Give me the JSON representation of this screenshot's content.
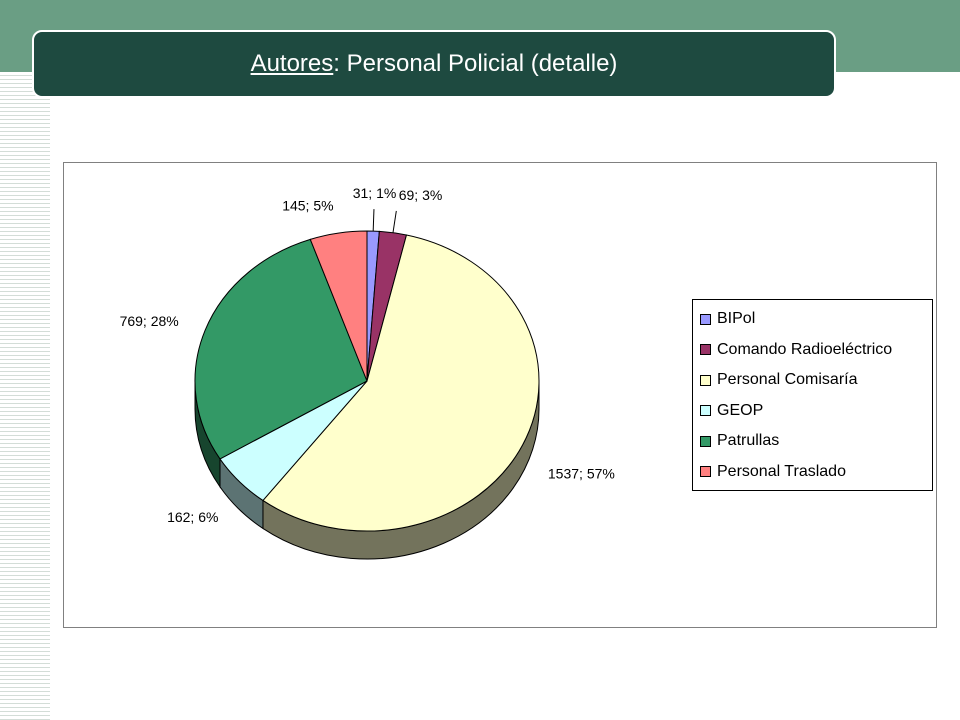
{
  "slide": {
    "title_underlined": "Autores",
    "title_rest": ": Personal Policial (detalle)"
  },
  "colors": {
    "top_band": "#6a9e84",
    "title_bar": "#1e4a40"
  },
  "chart_data": {
    "type": "pie",
    "style": "3d-exploded-pie",
    "legend_position": "right",
    "slices": [
      {
        "name": "BIPol",
        "value": 31,
        "percent": 1,
        "label": "31; 1%",
        "color": "#9999ff"
      },
      {
        "name": "Comando Radioeléctrico",
        "value": 69,
        "percent": 3,
        "label": "69; 3%",
        "color": "#993366"
      },
      {
        "name": "Personal Comisaría",
        "value": 1537,
        "percent": 57,
        "label": "1537; 57%",
        "color": "#ffffcc"
      },
      {
        "name": "GEOP",
        "value": 162,
        "percent": 6,
        "label": "162; 6%",
        "color": "#ccffff"
      },
      {
        "name": "Patrullas",
        "value": 769,
        "percent": 28,
        "label": "769; 28%",
        "color": "#339966"
      },
      {
        "name": "Personal Traslado",
        "value": 145,
        "percent": 5,
        "label": "145; 5%",
        "color": "#ff8080"
      }
    ]
  }
}
